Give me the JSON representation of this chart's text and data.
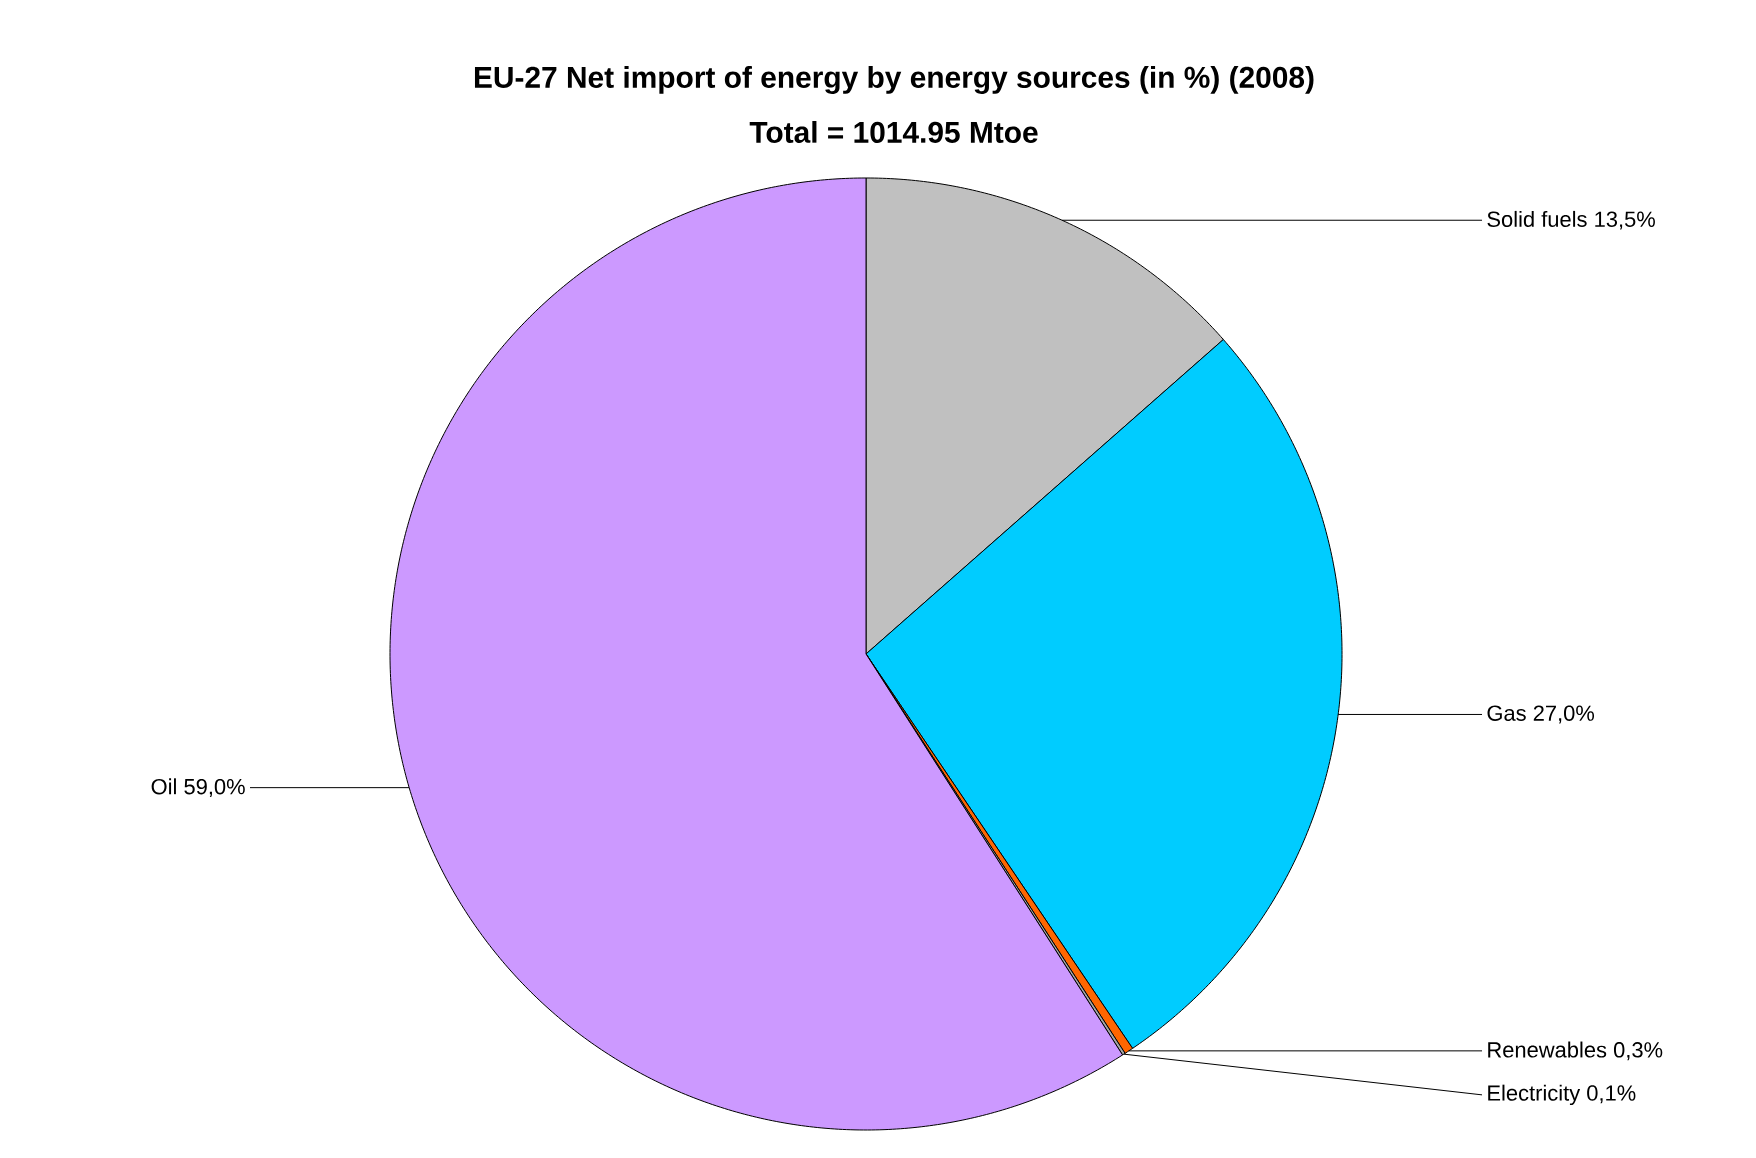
{
  "chart_data": {
    "type": "pie",
    "title": "EU-27 Net import of energy by energy sources (in %) (2008)",
    "subtitle": "Total = 1014.95 Mtoe",
    "categories": [
      "Solid fuels",
      "Gas",
      "Renewables",
      "Electricity",
      "Oil"
    ],
    "values": [
      13.5,
      27.0,
      0.3,
      0.1,
      59.0
    ],
    "value_labels": [
      "13,5%",
      "27,0%",
      "0,3%",
      "0,1%",
      "59,0%"
    ],
    "colors": [
      "#c0c0c0",
      "#00ccff",
      "#ff6600",
      "#a6a6a6",
      "#cc99ff"
    ]
  }
}
